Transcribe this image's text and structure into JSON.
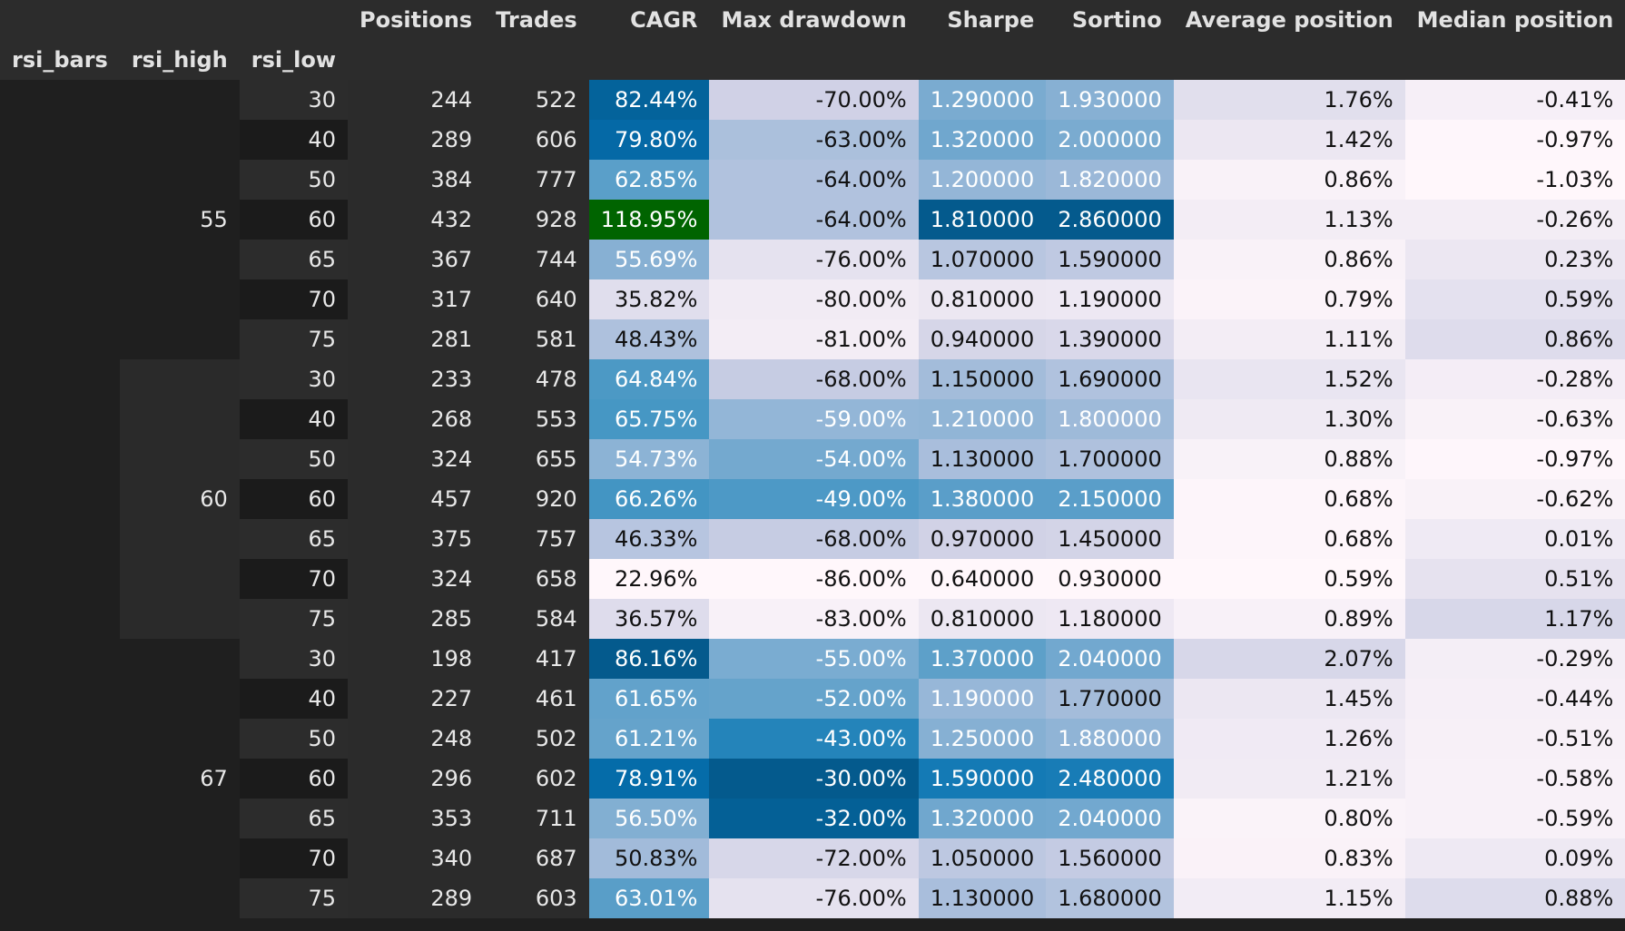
{
  "columns": [
    "Positions",
    "Trades",
    "CAGR",
    "Max drawdown",
    "Sharpe",
    "Sortino",
    "Average position",
    "Median position"
  ],
  "index_names": [
    "rsi_bars",
    "rsi_high",
    "rsi_low"
  ],
  "groups": [
    {
      "rsi_high": "55",
      "rows": [
        {
          "rsi_low": "30",
          "Positions": "244",
          "Trades": "522",
          "CAGR": "82.44%",
          "Max drawdown": "-70.00%",
          "Sharpe": "1.290000",
          "Sortino": "1.930000",
          "Average position": "1.76%",
          "Median position": "-0.41%"
        },
        {
          "rsi_low": "40",
          "Positions": "289",
          "Trades": "606",
          "CAGR": "79.80%",
          "Max drawdown": "-63.00%",
          "Sharpe": "1.320000",
          "Sortino": "2.000000",
          "Average position": "1.42%",
          "Median position": "-0.97%"
        },
        {
          "rsi_low": "50",
          "Positions": "384",
          "Trades": "777",
          "CAGR": "62.85%",
          "Max drawdown": "-64.00%",
          "Sharpe": "1.200000",
          "Sortino": "1.820000",
          "Average position": "0.86%",
          "Median position": "-1.03%"
        },
        {
          "rsi_low": "60",
          "Positions": "432",
          "Trades": "928",
          "CAGR": "118.95%",
          "Max drawdown": "-64.00%",
          "Sharpe": "1.810000",
          "Sortino": "2.860000",
          "Average position": "1.13%",
          "Median position": "-0.26%"
        },
        {
          "rsi_low": "65",
          "Positions": "367",
          "Trades": "744",
          "CAGR": "55.69%",
          "Max drawdown": "-76.00%",
          "Sharpe": "1.070000",
          "Sortino": "1.590000",
          "Average position": "0.86%",
          "Median position": "0.23%"
        },
        {
          "rsi_low": "70",
          "Positions": "317",
          "Trades": "640",
          "CAGR": "35.82%",
          "Max drawdown": "-80.00%",
          "Sharpe": "0.810000",
          "Sortino": "1.190000",
          "Average position": "0.79%",
          "Median position": "0.59%"
        },
        {
          "rsi_low": "75",
          "Positions": "281",
          "Trades": "581",
          "CAGR": "48.43%",
          "Max drawdown": "-81.00%",
          "Sharpe": "0.940000",
          "Sortino": "1.390000",
          "Average position": "1.11%",
          "Median position": "0.86%"
        }
      ]
    },
    {
      "rsi_high": "60",
      "rows": [
        {
          "rsi_low": "30",
          "Positions": "233",
          "Trades": "478",
          "CAGR": "64.84%",
          "Max drawdown": "-68.00%",
          "Sharpe": "1.150000",
          "Sortino": "1.690000",
          "Average position": "1.52%",
          "Median position": "-0.28%"
        },
        {
          "rsi_low": "40",
          "Positions": "268",
          "Trades": "553",
          "CAGR": "65.75%",
          "Max drawdown": "-59.00%",
          "Sharpe": "1.210000",
          "Sortino": "1.800000",
          "Average position": "1.30%",
          "Median position": "-0.63%"
        },
        {
          "rsi_low": "50",
          "Positions": "324",
          "Trades": "655",
          "CAGR": "54.73%",
          "Max drawdown": "-54.00%",
          "Sharpe": "1.130000",
          "Sortino": "1.700000",
          "Average position": "0.88%",
          "Median position": "-0.97%"
        },
        {
          "rsi_low": "60",
          "Positions": "457",
          "Trades": "920",
          "CAGR": "66.26%",
          "Max drawdown": "-49.00%",
          "Sharpe": "1.380000",
          "Sortino": "2.150000",
          "Average position": "0.68%",
          "Median position": "-0.62%"
        },
        {
          "rsi_low": "65",
          "Positions": "375",
          "Trades": "757",
          "CAGR": "46.33%",
          "Max drawdown": "-68.00%",
          "Sharpe": "0.970000",
          "Sortino": "1.450000",
          "Average position": "0.68%",
          "Median position": "0.01%"
        },
        {
          "rsi_low": "70",
          "Positions": "324",
          "Trades": "658",
          "CAGR": "22.96%",
          "Max drawdown": "-86.00%",
          "Sharpe": "0.640000",
          "Sortino": "0.930000",
          "Average position": "0.59%",
          "Median position": "0.51%"
        },
        {
          "rsi_low": "75",
          "Positions": "285",
          "Trades": "584",
          "CAGR": "36.57%",
          "Max drawdown": "-83.00%",
          "Sharpe": "0.810000",
          "Sortino": "1.180000",
          "Average position": "0.89%",
          "Median position": "1.17%"
        }
      ]
    },
    {
      "rsi_high": "67",
      "rows": [
        {
          "rsi_low": "30",
          "Positions": "198",
          "Trades": "417",
          "CAGR": "86.16%",
          "Max drawdown": "-55.00%",
          "Sharpe": "1.370000",
          "Sortino": "2.040000",
          "Average position": "2.07%",
          "Median position": "-0.29%"
        },
        {
          "rsi_low": "40",
          "Positions": "227",
          "Trades": "461",
          "CAGR": "61.65%",
          "Max drawdown": "-52.00%",
          "Sharpe": "1.190000",
          "Sortino": "1.770000",
          "Average position": "1.45%",
          "Median position": "-0.44%"
        },
        {
          "rsi_low": "50",
          "Positions": "248",
          "Trades": "502",
          "CAGR": "61.21%",
          "Max drawdown": "-43.00%",
          "Sharpe": "1.250000",
          "Sortino": "1.880000",
          "Average position": "1.26%",
          "Median position": "-0.51%"
        },
        {
          "rsi_low": "60",
          "Positions": "296",
          "Trades": "602",
          "CAGR": "78.91%",
          "Max drawdown": "-30.00%",
          "Sharpe": "1.590000",
          "Sortino": "2.480000",
          "Average position": "1.21%",
          "Median position": "-0.58%"
        },
        {
          "rsi_low": "65",
          "Positions": "353",
          "Trades": "711",
          "CAGR": "56.50%",
          "Max drawdown": "-32.00%",
          "Sharpe": "1.320000",
          "Sortino": "2.040000",
          "Average position": "0.80%",
          "Median position": "-0.59%"
        },
        {
          "rsi_low": "70",
          "Positions": "340",
          "Trades": "687",
          "CAGR": "50.83%",
          "Max drawdown": "-72.00%",
          "Sharpe": "1.050000",
          "Sortino": "1.560000",
          "Average position": "0.83%",
          "Median position": "0.09%"
        },
        {
          "rsi_low": "75",
          "Positions": "289",
          "Trades": "603",
          "CAGR": "63.01%",
          "Max drawdown": "-76.00%",
          "Sharpe": "1.130000",
          "Sortino": "1.680000",
          "Average position": "1.15%",
          "Median position": "0.88%"
        }
      ]
    }
  ],
  "colors": {
    "heatmap_low": "#fff7fb",
    "heatmap_high": "#045a8d",
    "best_highlight": "#006400"
  }
}
